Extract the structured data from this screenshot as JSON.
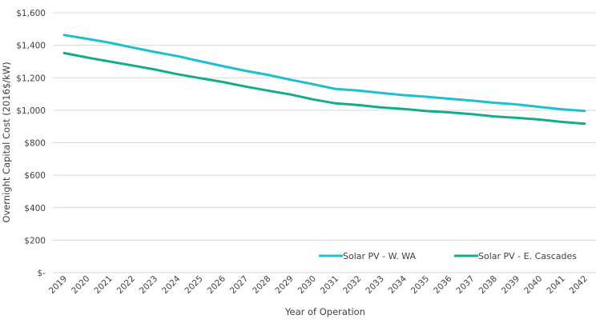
{
  "chart_data": {
    "type": "line",
    "title": "",
    "xlabel": "Year of Operation",
    "ylabel": "Overnight Capital Cost (2016$/kW)",
    "ylim": [
      0,
      1600
    ],
    "yticks": [
      0,
      200,
      400,
      600,
      800,
      1000,
      1200,
      1400,
      1600
    ],
    "ytick_labels": [
      "$-",
      "$200",
      "$400",
      "$600",
      "$800",
      "$1,000",
      "$1,200",
      "$1,400",
      "$1,600"
    ],
    "grid": true,
    "legend_position": "bottom-right",
    "x": [
      "2019",
      "2020",
      "2021",
      "2022",
      "2023",
      "2024",
      "2025",
      "2026",
      "2027",
      "2028",
      "2029",
      "2030",
      "2031",
      "2032",
      "2033",
      "2034",
      "2035",
      "2036",
      "2037",
      "2038",
      "2039",
      "2040",
      "2041",
      "2042"
    ],
    "series": [
      {
        "name": "Solar PV - W. WA",
        "color": "#1dbfd1",
        "values": [
          1463,
          1440,
          1416,
          1387,
          1359,
          1333,
          1302,
          1272,
          1243,
          1218,
          1188,
          1160,
          1131,
          1121,
          1106,
          1093,
          1083,
          1071,
          1060,
          1046,
          1036,
          1020,
          1006,
          996
        ]
      },
      {
        "name": "Solar PV - E. Cascades",
        "color": "#13ad8c",
        "values": [
          1352,
          1325,
          1300,
          1276,
          1251,
          1222,
          1198,
          1174,
          1146,
          1121,
          1097,
          1067,
          1042,
          1032,
          1017,
          1008,
          995,
          987,
          976,
          962,
          953,
          943,
          928,
          917
        ]
      }
    ]
  }
}
